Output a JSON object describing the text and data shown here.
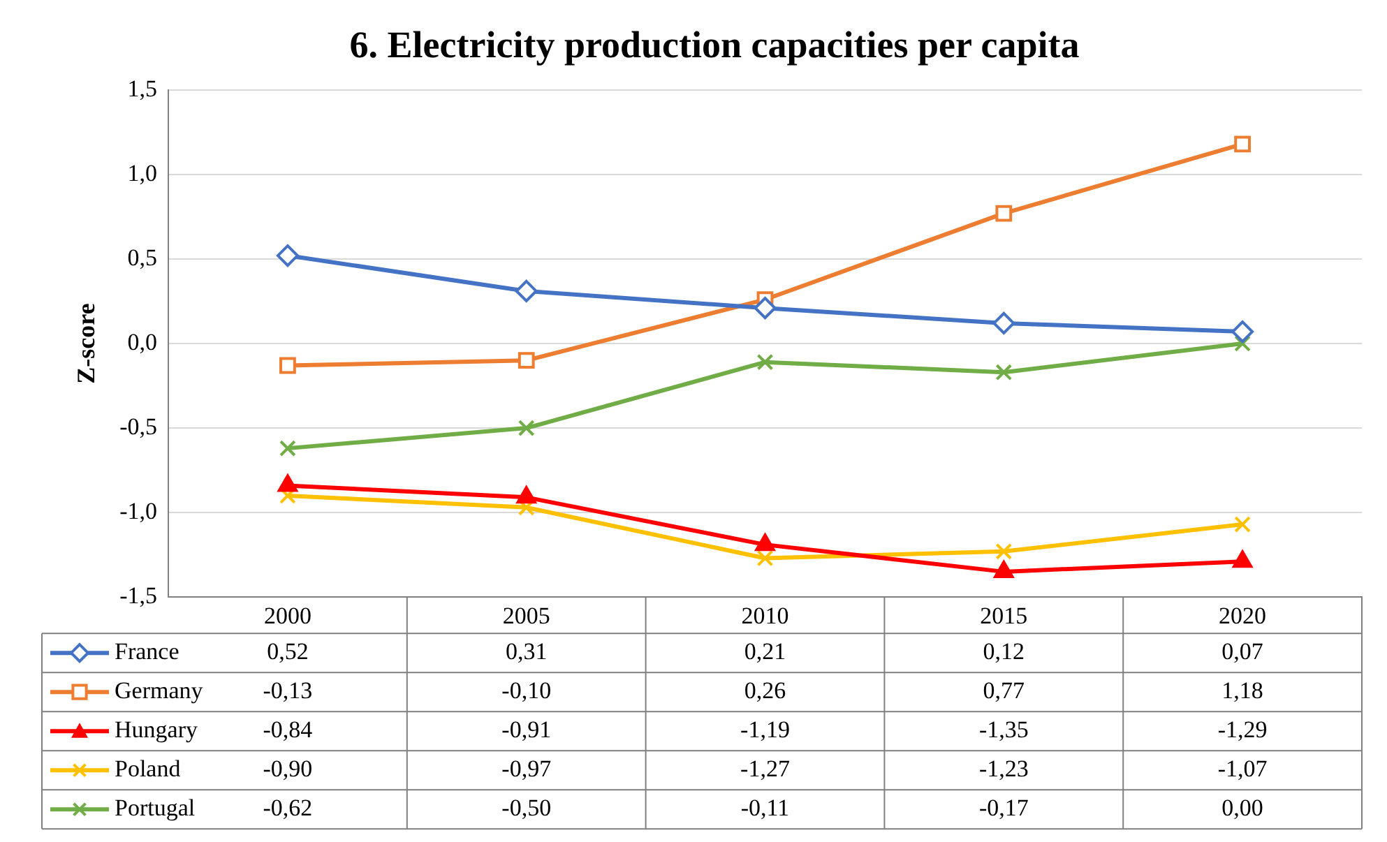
{
  "chart_data": {
    "type": "line",
    "title": "6. Electricity production capacities per capita",
    "ylabel": "Z-score",
    "categories": [
      "2000",
      "2005",
      "2010",
      "2015",
      "2020"
    ],
    "series": [
      {
        "name": "France",
        "color": "#4472c4",
        "marker": "diamond",
        "values": [
          0.52,
          0.31,
          0.21,
          0.12,
          0.07
        ],
        "value_labels": [
          "0,52",
          "0,31",
          "0,21",
          "0,12",
          "0,07"
        ]
      },
      {
        "name": "Germany",
        "color": "#ed7d31",
        "marker": "square",
        "values": [
          -0.13,
          -0.1,
          0.26,
          0.77,
          1.18
        ],
        "value_labels": [
          "-0,13",
          "-0,10",
          "0,26",
          "0,77",
          "1,18"
        ]
      },
      {
        "name": "Hungary",
        "color": "#ff0000",
        "marker": "triangle",
        "values": [
          -0.84,
          -0.91,
          -1.19,
          -1.35,
          -1.29
        ],
        "value_labels": [
          "-0,84",
          "-0,91",
          "-1,19",
          "-1,35",
          "-1,29"
        ]
      },
      {
        "name": "Poland",
        "color": "#ffc000",
        "marker": "cross",
        "values": [
          -0.9,
          -0.97,
          -1.27,
          -1.23,
          -1.07
        ],
        "value_labels": [
          "-0,90",
          "-0,97",
          "-1,27",
          "-1,23",
          "-1,07"
        ]
      },
      {
        "name": "Portugal",
        "color": "#70ad47",
        "marker": "cross",
        "values": [
          -0.62,
          -0.5,
          -0.11,
          -0.17,
          0.0
        ],
        "value_labels": [
          "-0,62",
          "-0,50",
          "-0,11",
          "-0,17",
          "0,00"
        ]
      }
    ],
    "ylim": [
      -1.5,
      1.5
    ],
    "yticks": [
      {
        "value": -1.5,
        "label": "-1,5"
      },
      {
        "value": -1,
        "label": "-1,0"
      },
      {
        "value": -0.5,
        "label": "-0,5"
      },
      {
        "value": 0,
        "label": "0,0"
      },
      {
        "value": 0.5,
        "label": "0,5"
      },
      {
        "value": 1,
        "label": "1,0"
      },
      {
        "value": 1.5,
        "label": "1,5"
      }
    ],
    "grid": "y",
    "legend": "bottom",
    "line_style": "solid"
  }
}
